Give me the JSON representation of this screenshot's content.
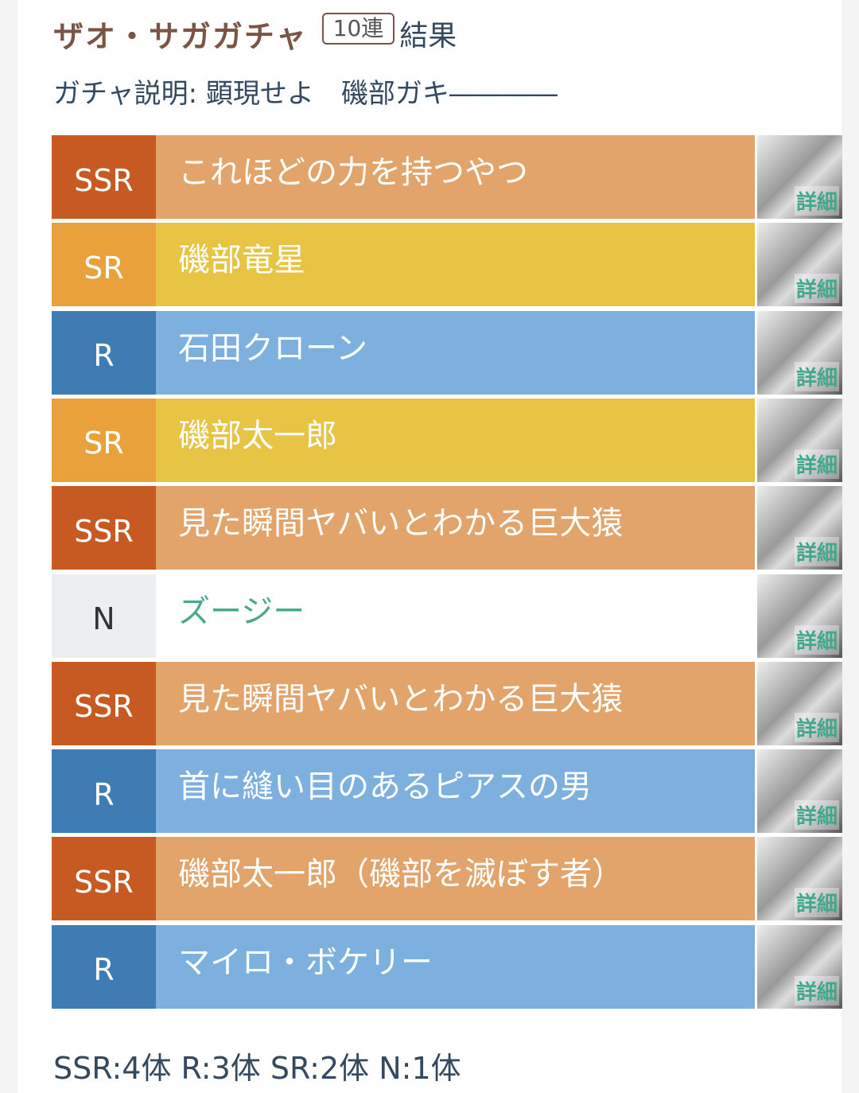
{
  "header": {
    "gacha_name": "ザオ・サガガチャ",
    "count_badge": "10連",
    "result_label": "結果",
    "description": "ガチャ説明: 顕現せよ　磯部ガキ――――"
  },
  "rarity_colors": {
    "SSR": {
      "label_bg": "#c65a22",
      "row_bg": "#e2a46a",
      "text": "#ffffff",
      "label_text": "#ffffff"
    },
    "SR": {
      "label_bg": "#e9a23b",
      "row_bg": "#e8c444",
      "text": "#ffffff",
      "label_text": "#ffffff"
    },
    "R": {
      "label_bg": "#3f7cb3",
      "row_bg": "#7db0de",
      "text": "#ffffff",
      "label_text": "#ffffff"
    },
    "N": {
      "label_bg": "#ebeff1",
      "row_bg": "#ffffff",
      "text": "#4aa98a",
      "label_text": "#333333"
    }
  },
  "results": [
    {
      "rarity": "SSR",
      "name": "これほどの力を持つやつ",
      "detail": "詳細"
    },
    {
      "rarity": "SR",
      "name": "磯部竜星",
      "detail": "詳細"
    },
    {
      "rarity": "R",
      "name": "石田クローン",
      "detail": "詳細"
    },
    {
      "rarity": "SR",
      "name": "磯部太一郎",
      "detail": "詳細"
    },
    {
      "rarity": "SSR",
      "name": "見た瞬間ヤバいとわかる巨大猿",
      "detail": "詳細"
    },
    {
      "rarity": "N",
      "name": "ズージー",
      "detail": "詳細"
    },
    {
      "rarity": "SSR",
      "name": "見た瞬間ヤバいとわかる巨大猿",
      "detail": "詳細"
    },
    {
      "rarity": "R",
      "name": "首に縫い目のあるピアスの男",
      "detail": "詳細"
    },
    {
      "rarity": "SSR",
      "name": "磯部太一郎（磯部を滅ぼす者）",
      "detail": "詳細"
    },
    {
      "rarity": "R",
      "name": "マイロ・ボケリー",
      "detail": "詳細"
    }
  ],
  "summary": "SSR:4体 R:3体 SR:2体 N:1体"
}
